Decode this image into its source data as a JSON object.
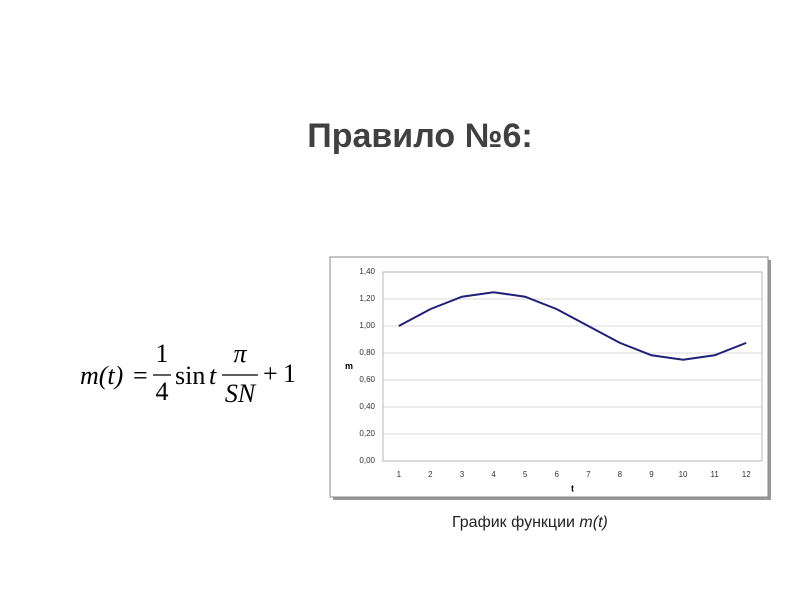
{
  "title": "Правило №6:",
  "formula": {
    "lhs": "m(t)",
    "eq": "=",
    "num": "1",
    "den": "4",
    "func": "sin",
    "arg": "t",
    "num2": "π",
    "den2": "SN",
    "plus": "+",
    "one": "1"
  },
  "chart_data": {
    "type": "line",
    "x_label": "t",
    "y_label": "m",
    "categories": [
      "1",
      "2",
      "3",
      "4",
      "5",
      "6",
      "7",
      "8",
      "9",
      "10",
      "11",
      "12"
    ],
    "values": [
      1.0,
      1.125,
      1.217,
      1.25,
      1.217,
      1.125,
      1.0,
      0.875,
      0.783,
      0.75,
      0.783,
      0.875
    ],
    "color": "#1f1f7a",
    "ylim": [
      0,
      1.4
    ],
    "yticks": [
      {
        "value": 0,
        "label": "0,00"
      },
      {
        "value": 0.2,
        "label": "0,20"
      },
      {
        "value": 0.4,
        "label": "0,40"
      },
      {
        "value": 0.6,
        "label": "0,60"
      },
      {
        "value": 0.8,
        "label": "0,80"
      },
      {
        "value": 1.0,
        "label": "1,00"
      },
      {
        "value": 1.2,
        "label": "1,20"
      },
      {
        "value": 1.4,
        "label": "1,40"
      }
    ],
    "grid": true
  },
  "caption": {
    "text": "График функции",
    "func": "m(t)"
  }
}
